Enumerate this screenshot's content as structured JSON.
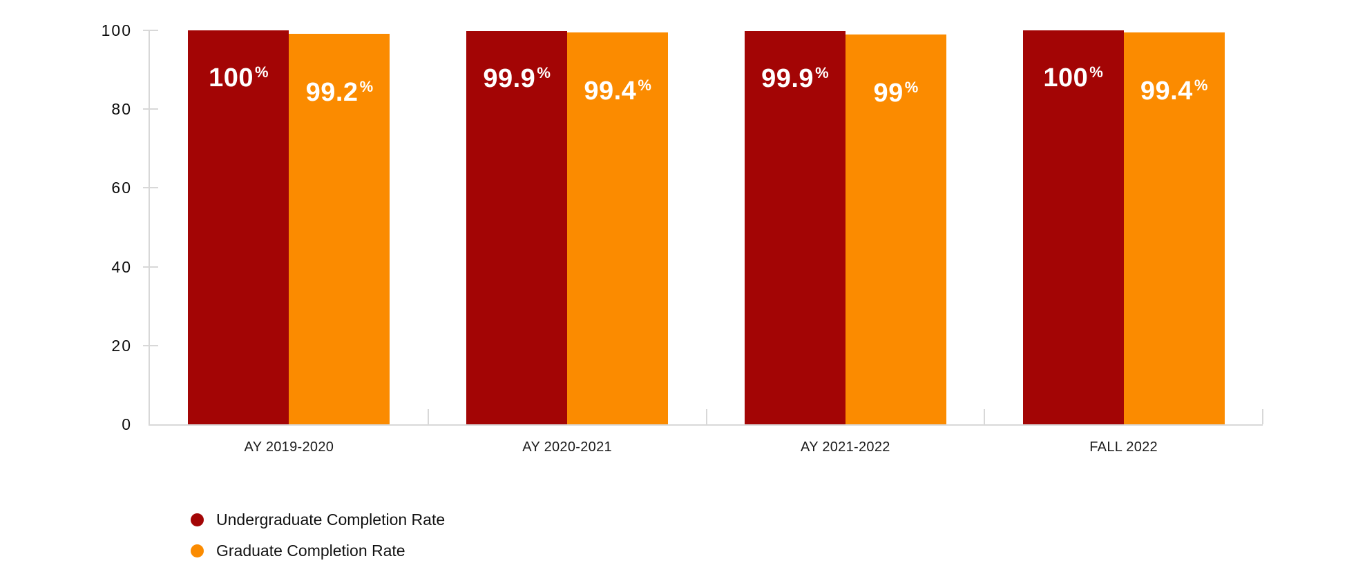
{
  "chart_data": {
    "type": "bar",
    "title": "",
    "xlabel": "",
    "ylabel": "",
    "categories": [
      "AY 2019-2020",
      "AY 2020-2021",
      "AY 2021-2022",
      "FALL 2022"
    ],
    "series": [
      {
        "name": "Undergraduate Completion Rate",
        "color": "#A30505",
        "values": [
          100,
          99.9,
          99.9,
          100
        ]
      },
      {
        "name": "Graduate Completion Rate",
        "color": "#FB8B00",
        "values": [
          99.2,
          99.4,
          99,
          99.4
        ]
      }
    ],
    "value_suffix": "%",
    "y_ticks": [
      0,
      20,
      40,
      60,
      80,
      100
    ],
    "ylim": [
      0,
      100
    ],
    "grid": false,
    "legend_position": "bottom-left"
  },
  "colors": {
    "axis": "#D8D8D8",
    "y_tick_text": "#0D0D0D",
    "category_text": "#1A1A1A",
    "bar_value_text": "#FFFFFF",
    "background": "#FFFFFF"
  }
}
